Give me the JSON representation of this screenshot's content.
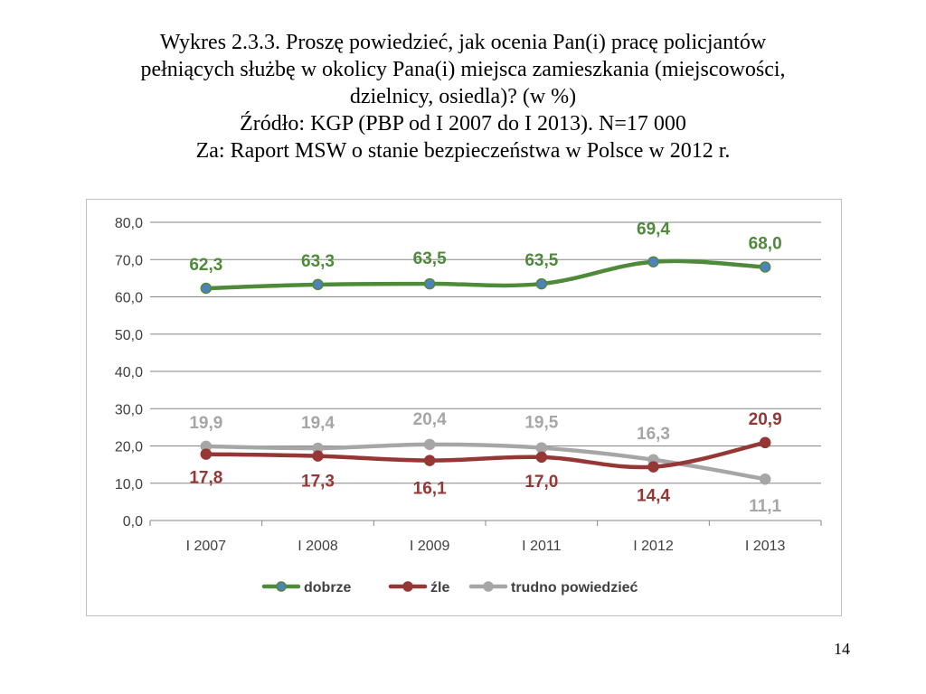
{
  "slide": {
    "title_lines": [
      "Wykres 2.3.3. Proszę powiedzieć, jak ocenia Pan(i) pracę policjantów",
      "pełniących służbę w okolicy Pana(i) miejsca zamieszkania (miejscowości,",
      "dzielnicy, osiedla)? (w %)",
      "Źródło: KGP (PBP od I 2007 do I 2013). N=17 000",
      "Za: Raport MSW o stanie bezpieczeństwa w Polsce w 2012 r."
    ],
    "page_number": "14"
  },
  "chart_data": {
    "type": "line",
    "title": "",
    "xlabel": "",
    "ylabel": "",
    "categories": [
      "I 2007",
      "I 2008",
      "I 2009",
      "I 2011",
      "I 2012",
      "I 2013"
    ],
    "ylim": [
      0,
      80
    ],
    "yticks": [
      "0,0",
      "10,0",
      "20,0",
      "30,0",
      "40,0",
      "50,0",
      "60,0",
      "70,0",
      "80,0"
    ],
    "grid": true,
    "legend_position": "bottom",
    "series": [
      {
        "name": "dobrze",
        "color": "#4e8a3a",
        "marker": "#4f81bd",
        "values": [
          62.3,
          63.3,
          63.5,
          63.5,
          69.4,
          68.0
        ],
        "labels": [
          "62,3",
          "63,3",
          "63,5",
          "63,5",
          "69,4",
          "68,0"
        ]
      },
      {
        "name": "źle",
        "color": "#953735",
        "marker": "#953735",
        "values": [
          17.8,
          17.3,
          16.1,
          17.0,
          14.4,
          20.9
        ],
        "labels": [
          "17,8",
          "17,3",
          "16,1",
          "17,0",
          "14,4",
          "20,9"
        ]
      },
      {
        "name": "trudno powiedzieć",
        "color": "#a6a6a6",
        "marker": "#a6a6a6",
        "values": [
          19.9,
          19.4,
          20.4,
          19.5,
          16.3,
          11.1
        ],
        "labels": [
          "19,9",
          "19,4",
          "20,4",
          "19,5",
          "16,3",
          "11,1"
        ]
      }
    ]
  }
}
